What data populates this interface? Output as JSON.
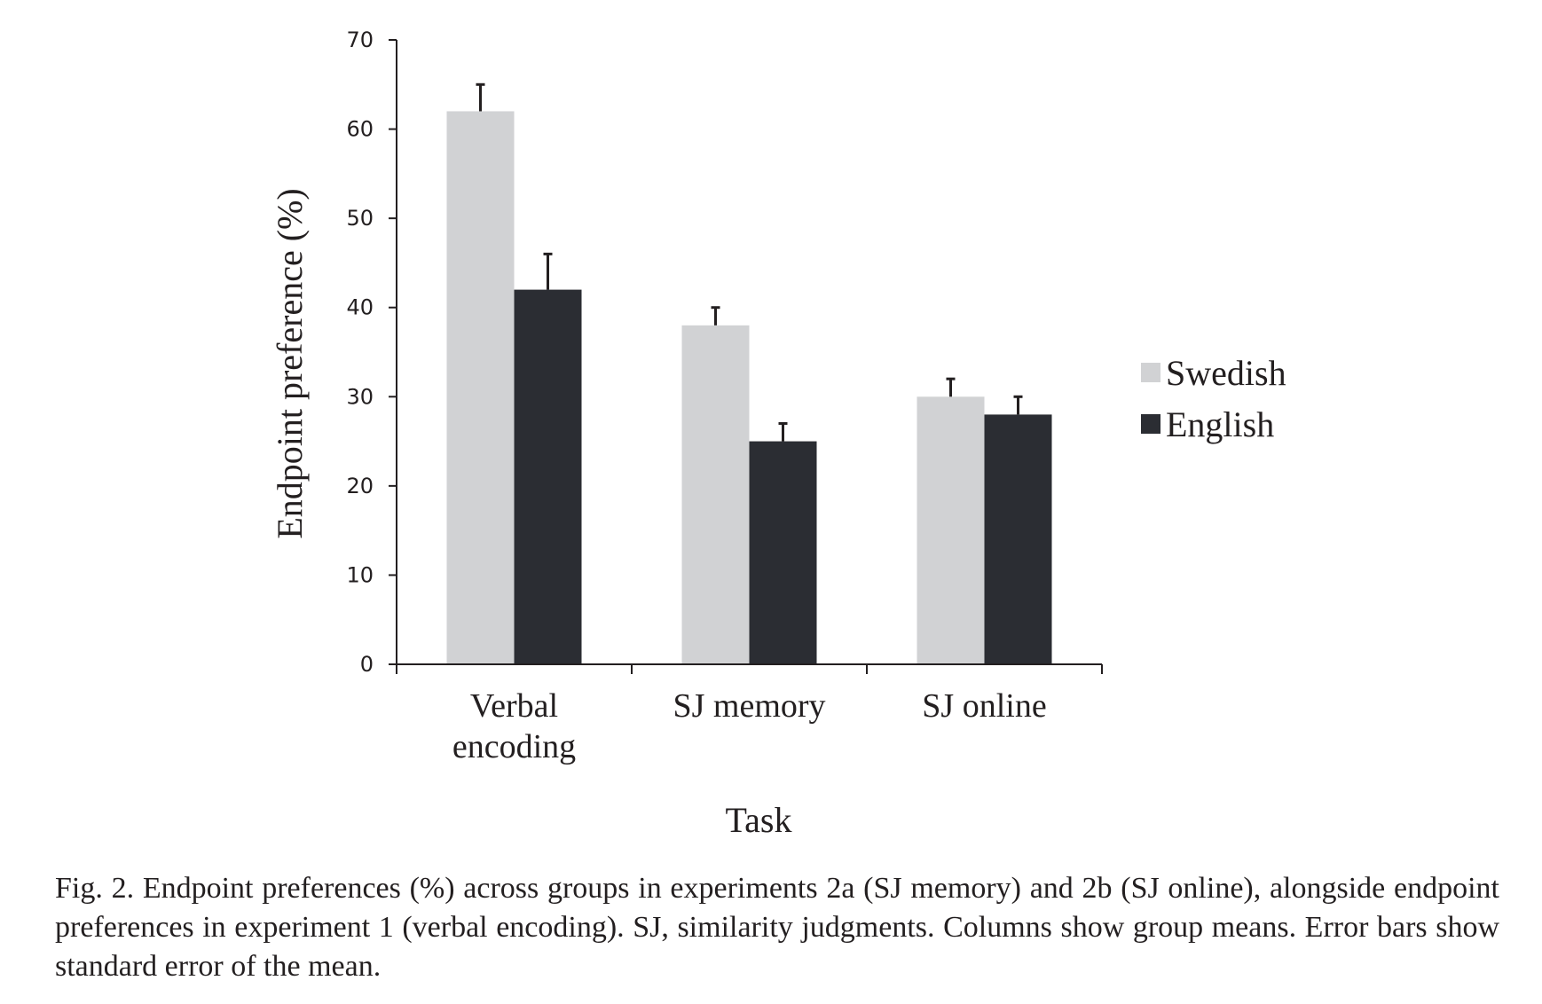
{
  "chart_data": {
    "type": "bar",
    "categories": [
      "Verbal encoding",
      "SJ memory",
      "SJ online"
    ],
    "category_lines": [
      [
        "Verbal",
        "encoding"
      ],
      [
        "SJ memory"
      ],
      [
        "SJ online"
      ]
    ],
    "series": [
      {
        "name": "Swedish",
        "values": [
          62,
          38,
          30
        ],
        "errors": [
          3,
          2,
          2
        ],
        "color": "#d1d2d4"
      },
      {
        "name": "English",
        "values": [
          42,
          25,
          28
        ],
        "errors": [
          4,
          2,
          2
        ],
        "color": "#2b2d33"
      }
    ],
    "xlabel": "Task",
    "ylabel": "Endpoint preference (%)",
    "ylim": [
      0,
      70
    ],
    "yticks": [
      0,
      10,
      20,
      30,
      40,
      50,
      60,
      70
    ],
    "grid": false,
    "legend_position": "right"
  },
  "caption": "Fig. 2. Endpoint preferences (%) across groups in experiments 2a (SJ memory) and 2b (SJ online), alongside endpoint preferences in experiment 1 (verbal encoding). SJ, similarity judgments. Columns show group means. Error bars show standard error of the mean."
}
